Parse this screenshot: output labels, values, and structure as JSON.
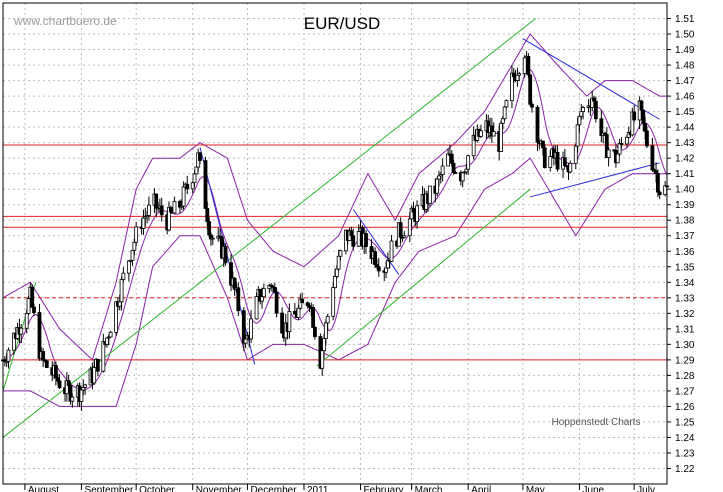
{
  "watermark": "www.chartbuero.de",
  "credit": "Hoppenstedt Charts",
  "chart_data": {
    "type": "candlestick",
    "title": "EUR/USD",
    "ylim": [
      1.21,
      1.52
    ],
    "y_ticks": [
      1.22,
      1.23,
      1.24,
      1.25,
      1.26,
      1.27,
      1.28,
      1.29,
      1.3,
      1.31,
      1.32,
      1.33,
      1.34,
      1.35,
      1.36,
      1.37,
      1.38,
      1.39,
      1.4,
      1.41,
      1.42,
      1.43,
      1.44,
      1.45,
      1.46,
      1.47,
      1.48,
      1.49,
      1.5,
      1.51
    ],
    "grid": true,
    "x_months": [
      "August",
      "September",
      "October",
      "November",
      "December",
      "2011",
      "February",
      "March",
      "April",
      "May",
      "June",
      "July"
    ],
    "month_starts": [
      "2010-08-01",
      "2010-09-01",
      "2010-10-01",
      "2010-11-01",
      "2010-12-01",
      "2011-01-01",
      "2011-02-01",
      "2011-03-01",
      "2011-04-01",
      "2011-05-01",
      "2011-06-01",
      "2011-07-01"
    ],
    "x_range": [
      "2010-07-20",
      "2011-07-19"
    ],
    "price_path": [
      [
        "2010-07-20",
        1.29
      ],
      [
        "2010-07-28",
        1.31
      ],
      [
        "2010-08-04",
        1.33
      ],
      [
        "2010-08-10",
        1.29
      ],
      [
        "2010-08-17",
        1.28
      ],
      [
        "2010-08-24",
        1.27
      ],
      [
        "2010-08-31",
        1.27
      ],
      [
        "2010-09-07",
        1.28
      ],
      [
        "2010-09-14",
        1.3
      ],
      [
        "2010-09-21",
        1.33
      ],
      [
        "2010-09-28",
        1.36
      ],
      [
        "2010-10-04",
        1.38
      ],
      [
        "2010-10-11",
        1.39
      ],
      [
        "2010-10-18",
        1.38
      ],
      [
        "2010-10-25",
        1.39
      ],
      [
        "2010-11-01",
        1.41
      ],
      [
        "2010-11-04",
        1.42
      ],
      [
        "2010-11-11",
        1.37
      ],
      [
        "2010-11-18",
        1.36
      ],
      [
        "2010-11-25",
        1.33
      ],
      [
        "2010-11-30",
        1.3
      ],
      [
        "2010-12-07",
        1.33
      ],
      [
        "2010-12-14",
        1.34
      ],
      [
        "2010-12-21",
        1.31
      ],
      [
        "2010-12-28",
        1.32
      ],
      [
        "2011-01-04",
        1.33
      ],
      [
        "2011-01-10",
        1.29
      ],
      [
        "2011-01-17",
        1.34
      ],
      [
        "2011-01-24",
        1.37
      ],
      [
        "2011-01-31",
        1.37
      ],
      [
        "2011-02-07",
        1.36
      ],
      [
        "2011-02-14",
        1.35
      ],
      [
        "2011-02-21",
        1.37
      ],
      [
        "2011-02-28",
        1.38
      ],
      [
        "2011-03-07",
        1.39
      ],
      [
        "2011-03-14",
        1.4
      ],
      [
        "2011-03-21",
        1.42
      ],
      [
        "2011-03-28",
        1.41
      ],
      [
        "2011-04-04",
        1.43
      ],
      [
        "2011-04-11",
        1.44
      ],
      [
        "2011-04-18",
        1.43
      ],
      [
        "2011-04-25",
        1.47
      ],
      [
        "2011-05-02",
        1.49
      ],
      [
        "2011-05-05",
        1.46
      ],
      [
        "2011-05-12",
        1.42
      ],
      [
        "2011-05-19",
        1.42
      ],
      [
        "2011-05-26",
        1.41
      ],
      [
        "2011-06-02",
        1.45
      ],
      [
        "2011-06-08",
        1.46
      ],
      [
        "2011-06-14",
        1.43
      ],
      [
        "2011-06-21",
        1.42
      ],
      [
        "2011-06-28",
        1.44
      ],
      [
        "2011-07-04",
        1.45
      ],
      [
        "2011-07-08",
        1.43
      ],
      [
        "2011-07-13",
        1.41
      ],
      [
        "2011-07-15",
        1.4
      ]
    ],
    "bollinger_upper": [
      [
        "2010-07-20",
        1.33
      ],
      [
        "2010-08-04",
        1.34
      ],
      [
        "2010-08-20",
        1.31
      ],
      [
        "2010-09-07",
        1.29
      ],
      [
        "2010-09-20",
        1.34
      ],
      [
        "2010-10-01",
        1.4
      ],
      [
        "2010-10-10",
        1.42
      ],
      [
        "2010-10-25",
        1.42
      ],
      [
        "2010-11-05",
        1.43
      ],
      [
        "2010-11-20",
        1.42
      ],
      [
        "2010-12-01",
        1.38
      ],
      [
        "2010-12-15",
        1.36
      ],
      [
        "2011-01-01",
        1.35
      ],
      [
        "2011-01-20",
        1.37
      ],
      [
        "2011-02-05",
        1.41
      ],
      [
        "2011-02-20",
        1.38
      ],
      [
        "2011-03-05",
        1.41
      ],
      [
        "2011-03-25",
        1.43
      ],
      [
        "2011-04-10",
        1.45
      ],
      [
        "2011-04-25",
        1.48
      ],
      [
        "2011-05-05",
        1.5
      ],
      [
        "2011-05-20",
        1.48
      ],
      [
        "2011-06-05",
        1.46
      ],
      [
        "2011-06-15",
        1.47
      ],
      [
        "2011-06-30",
        1.47
      ],
      [
        "2011-07-15",
        1.46
      ]
    ],
    "bollinger_lower": [
      [
        "2010-07-20",
        1.27
      ],
      [
        "2010-08-04",
        1.27
      ],
      [
        "2010-08-20",
        1.26
      ],
      [
        "2010-09-07",
        1.26
      ],
      [
        "2010-09-20",
        1.26
      ],
      [
        "2010-10-01",
        1.3
      ],
      [
        "2010-10-10",
        1.35
      ],
      [
        "2010-10-25",
        1.37
      ],
      [
        "2010-11-05",
        1.37
      ],
      [
        "2010-11-20",
        1.33
      ],
      [
        "2010-12-01",
        1.29
      ],
      [
        "2010-12-15",
        1.3
      ],
      [
        "2011-01-01",
        1.3
      ],
      [
        "2011-01-20",
        1.29
      ],
      [
        "2011-02-05",
        1.3
      ],
      [
        "2011-02-20",
        1.34
      ],
      [
        "2011-03-05",
        1.36
      ],
      [
        "2011-03-25",
        1.37
      ],
      [
        "2011-04-10",
        1.4
      ],
      [
        "2011-04-25",
        1.41
      ],
      [
        "2011-05-05",
        1.42
      ],
      [
        "2011-05-20",
        1.39
      ],
      [
        "2011-05-30",
        1.37
      ],
      [
        "2011-06-15",
        1.4
      ],
      [
        "2011-06-30",
        1.41
      ],
      [
        "2011-07-15",
        1.41
      ]
    ],
    "horizontal_lines": [
      {
        "y": 1.4285,
        "color": "#dd2222",
        "style": "solid"
      },
      {
        "y": 1.3825,
        "color": "#dd2222",
        "style": "solid"
      },
      {
        "y": 1.3755,
        "color": "#dd2222",
        "style": "solid"
      },
      {
        "y": 1.33,
        "color": "#dd2222",
        "style": "dashed"
      },
      {
        "y": 1.29,
        "color": "#dd2222",
        "style": "solid"
      }
    ],
    "trend_lines": [
      {
        "color": "#2bb82b",
        "points": [
          [
            "2010-07-20",
            1.24
          ],
          [
            "2011-05-08",
            1.51
          ]
        ]
      },
      {
        "color": "#2bb82b",
        "points": [
          [
            "2010-07-20",
            1.27
          ],
          [
            "2010-08-07",
            1.34
          ]
        ]
      },
      {
        "color": "#2bb82b",
        "points": [
          [
            "2011-01-08",
            1.286
          ],
          [
            "2011-05-05",
            1.4
          ]
        ]
      },
      {
        "color": "#2b2bd6",
        "points": [
          [
            "2010-11-05",
            1.427
          ],
          [
            "2010-12-05",
            1.287
          ]
        ]
      },
      {
        "color": "#2b2bd6",
        "points": [
          [
            "2011-05-01",
            1.497
          ],
          [
            "2011-07-15",
            1.445
          ]
        ]
      },
      {
        "color": "#2b2bd6",
        "points": [
          [
            "2011-05-05",
            1.395
          ],
          [
            "2011-07-15",
            1.417
          ]
        ]
      },
      {
        "color": "#2b2bd6",
        "points": [
          [
            "2011-01-28",
            1.387
          ],
          [
            "2011-02-22",
            1.345
          ]
        ]
      }
    ],
    "colors": {
      "candles": "#000000",
      "bollinger": "#8b20a8",
      "support": "#dd2222",
      "trend_green": "#2bb82b",
      "trend_blue": "#2b2bd6"
    }
  }
}
